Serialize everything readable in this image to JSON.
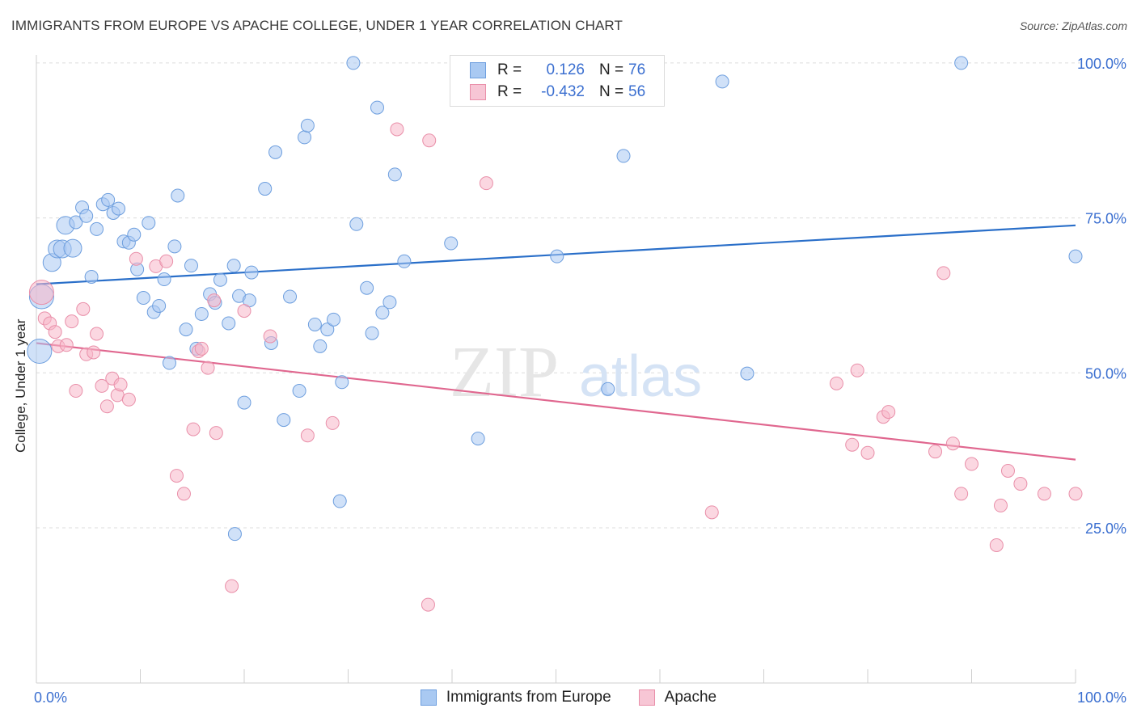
{
  "title": "IMMIGRANTS FROM EUROPE VS APACHE COLLEGE, UNDER 1 YEAR CORRELATION CHART",
  "source": "Source: ZipAtlas.com",
  "watermark": {
    "zip": "ZIP",
    "atlas": "atlas"
  },
  "legend": {
    "r_label": "R =",
    "n_label": "N =",
    "rows": [
      {
        "r": "0.126",
        "n": "76"
      },
      {
        "r": "-0.432",
        "n": "56"
      }
    ]
  },
  "bottom_legend": [
    "Immigrants from Europe",
    "Apache"
  ],
  "colors": {
    "blue_fill": "#a9c9f2",
    "blue_stroke": "#6d9ede",
    "blue_line": "#2a6fc9",
    "pink_fill": "#f7b6c9",
    "pink_stroke": "#e98fa9",
    "pink_line": "#e0678f",
    "tick_text": "#3b6fd0",
    "grid": "#dcdcdc"
  },
  "chart_data": {
    "type": "scatter",
    "title": "IMMIGRANTS FROM EUROPE VS APACHE COLLEGE, UNDER 1 YEAR CORRELATION CHART",
    "xlabel": "",
    "ylabel": "College, Under 1 year",
    "xlim": [
      0,
      100
    ],
    "ylim": [
      0,
      105
    ],
    "x_tick_labels": [
      "0.0%",
      "100.0%"
    ],
    "y_ticks": [
      25,
      50,
      75,
      100
    ],
    "y_tick_labels": [
      "25.0%",
      "50.0%",
      "75.0%",
      "100.0%"
    ],
    "grid": true,
    "legend_position": "top-center",
    "series": [
      {
        "name": "Immigrants from Europe",
        "color": "#6d9ede",
        "r": 0.126,
        "n": 76,
        "trend": [
          [
            0,
            64.3
          ],
          [
            100,
            73.8
          ]
        ],
        "points": [
          [
            0.3,
            53.5,
            3
          ],
          [
            0.5,
            62.3,
            3
          ],
          [
            1.5,
            67.8,
            2
          ],
          [
            2.0,
            70.0,
            2
          ],
          [
            2.5,
            70.0,
            2
          ],
          [
            2.8,
            73.8,
            2
          ],
          [
            3.5,
            70.1,
            2
          ],
          [
            3.8,
            74.3,
            1
          ],
          [
            4.4,
            76.7,
            1
          ],
          [
            4.8,
            75.3,
            1
          ],
          [
            5.3,
            65.5,
            1
          ],
          [
            5.8,
            73.2,
            1
          ],
          [
            6.4,
            77.2,
            1
          ],
          [
            6.9,
            77.9,
            1
          ],
          [
            7.4,
            75.8,
            1
          ],
          [
            7.9,
            76.5,
            1
          ],
          [
            8.4,
            71.2,
            1
          ],
          [
            8.9,
            71.0,
            1
          ],
          [
            9.4,
            72.3,
            1
          ],
          [
            9.7,
            66.7,
            1
          ],
          [
            10.3,
            62.1,
            1
          ],
          [
            10.8,
            74.2,
            1
          ],
          [
            11.3,
            59.8,
            1
          ],
          [
            11.8,
            60.8,
            1
          ],
          [
            12.3,
            65.1,
            1
          ],
          [
            12.8,
            51.6,
            1
          ],
          [
            13.3,
            70.4,
            1
          ],
          [
            13.6,
            78.6,
            1
          ],
          [
            14.4,
            57.0,
            1
          ],
          [
            14.9,
            67.3,
            1
          ],
          [
            15.4,
            53.9,
            1
          ],
          [
            15.9,
            59.5,
            1
          ],
          [
            16.7,
            62.7,
            1
          ],
          [
            17.2,
            61.3,
            1
          ],
          [
            17.7,
            65.0,
            1
          ],
          [
            18.5,
            58.0,
            1
          ],
          [
            19.0,
            67.3,
            1
          ],
          [
            19.1,
            24.0,
            1
          ],
          [
            19.5,
            62.4,
            1
          ],
          [
            20.0,
            45.2,
            1
          ],
          [
            20.5,
            61.7,
            1
          ],
          [
            20.7,
            66.2,
            1
          ],
          [
            22.0,
            79.7,
            1
          ],
          [
            22.6,
            54.8,
            1
          ],
          [
            23.0,
            85.6,
            1
          ],
          [
            23.8,
            42.4,
            1
          ],
          [
            24.4,
            62.3,
            1
          ],
          [
            25.3,
            47.1,
            1
          ],
          [
            25.8,
            88.0,
            1
          ],
          [
            26.1,
            89.9,
            1
          ],
          [
            26.8,
            57.8,
            1
          ],
          [
            27.3,
            54.3,
            1
          ],
          [
            28.0,
            57.0,
            1
          ],
          [
            28.6,
            58.6,
            1
          ],
          [
            29.2,
            29.3,
            1
          ],
          [
            29.4,
            48.5,
            1
          ],
          [
            30.5,
            100.0,
            1
          ],
          [
            30.8,
            74.0,
            1
          ],
          [
            31.8,
            63.7,
            1
          ],
          [
            32.3,
            56.4,
            1
          ],
          [
            32.8,
            92.8,
            1
          ],
          [
            33.3,
            59.7,
            1
          ],
          [
            34.0,
            61.4,
            1
          ],
          [
            34.5,
            82.0,
            1
          ],
          [
            35.4,
            68.0,
            1
          ],
          [
            39.9,
            70.9,
            1
          ],
          [
            42.5,
            39.4,
            1
          ],
          [
            47.7,
            100.0,
            1
          ],
          [
            50.1,
            68.8,
            1
          ],
          [
            55.0,
            47.4,
            1
          ],
          [
            56.5,
            85.0,
            1
          ],
          [
            66.0,
            97.0,
            1
          ],
          [
            68.4,
            49.9,
            1
          ],
          [
            89.0,
            100.0,
            1
          ],
          [
            100.0,
            68.8,
            1
          ]
        ]
      },
      {
        "name": "Apache",
        "color": "#e98fa9",
        "r": -0.432,
        "n": 56,
        "trend": [
          [
            0,
            54.8
          ],
          [
            100,
            36.0
          ]
        ],
        "points": [
          [
            0.5,
            63.0,
            3
          ],
          [
            0.8,
            58.8,
            1
          ],
          [
            1.3,
            58.0,
            1
          ],
          [
            1.8,
            56.6,
            1
          ],
          [
            2.1,
            54.3,
            1
          ],
          [
            2.9,
            54.5,
            1
          ],
          [
            3.4,
            58.3,
            1
          ],
          [
            3.8,
            47.1,
            1
          ],
          [
            4.5,
            60.3,
            1
          ],
          [
            4.8,
            53.0,
            1
          ],
          [
            5.5,
            53.3,
            1
          ],
          [
            5.8,
            56.3,
            1
          ],
          [
            6.3,
            47.9,
            1
          ],
          [
            6.8,
            44.6,
            1
          ],
          [
            7.3,
            49.1,
            1
          ],
          [
            7.8,
            46.4,
            1
          ],
          [
            8.1,
            48.1,
            1
          ],
          [
            8.9,
            45.7,
            1
          ],
          [
            9.6,
            68.4,
            1
          ],
          [
            11.5,
            67.2,
            1
          ],
          [
            12.5,
            68.0,
            1
          ],
          [
            13.5,
            33.4,
            1
          ],
          [
            14.2,
            30.5,
            1
          ],
          [
            15.1,
            40.9,
            1
          ],
          [
            15.6,
            53.5,
            1
          ],
          [
            15.9,
            53.9,
            1
          ],
          [
            16.5,
            50.8,
            1
          ],
          [
            17.1,
            61.7,
            1
          ],
          [
            17.3,
            40.3,
            1
          ],
          [
            18.8,
            15.6,
            1
          ],
          [
            20.0,
            60.0,
            1
          ],
          [
            22.5,
            55.9,
            1
          ],
          [
            26.1,
            39.9,
            1
          ],
          [
            28.5,
            41.9,
            1
          ],
          [
            34.7,
            89.3,
            1
          ],
          [
            37.7,
            12.6,
            1
          ],
          [
            37.8,
            87.5,
            1
          ],
          [
            43.3,
            80.6,
            1
          ],
          [
            65.0,
            27.5,
            1
          ],
          [
            77.0,
            48.3,
            1
          ],
          [
            78.5,
            38.4,
            1
          ],
          [
            79.0,
            50.4,
            1
          ],
          [
            80.0,
            37.1,
            1
          ],
          [
            81.5,
            42.9,
            1
          ],
          [
            82.0,
            43.7,
            1
          ],
          [
            86.5,
            37.3,
            1
          ],
          [
            87.3,
            66.1,
            1
          ],
          [
            88.2,
            38.6,
            1
          ],
          [
            89.0,
            30.5,
            1
          ],
          [
            90.0,
            35.3,
            1
          ],
          [
            92.4,
            22.2,
            1
          ],
          [
            92.8,
            28.6,
            1
          ],
          [
            93.5,
            34.2,
            1
          ],
          [
            94.7,
            32.1,
            1
          ],
          [
            97.0,
            30.5,
            1
          ],
          [
            100.0,
            30.5,
            1
          ]
        ]
      }
    ]
  }
}
